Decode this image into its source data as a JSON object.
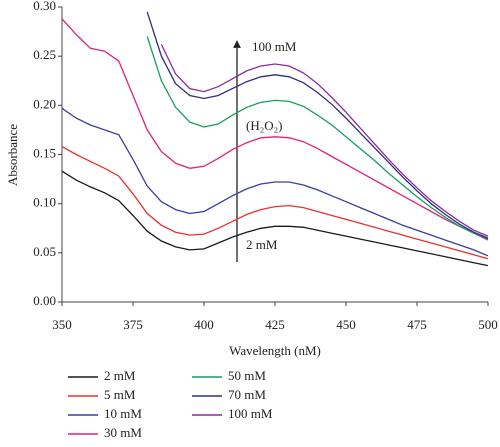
{
  "chart_data": {
    "type": "line",
    "xlabel": "Wavelength (nM)",
    "ylabel": "Absorbance",
    "annotations": [
      "100 mM",
      "(H₂O₂)",
      "2 mM"
    ],
    "x": [
      350,
      355,
      360,
      365,
      370,
      375,
      380,
      385,
      390,
      395,
      400,
      405,
      410,
      415,
      420,
      425,
      430,
      435,
      440,
      445,
      450,
      455,
      460,
      465,
      470,
      475,
      480,
      485,
      490,
      495,
      500
    ],
    "xlim": [
      350,
      500
    ],
    "xticks": [
      350,
      375,
      400,
      425,
      450,
      475,
      500
    ],
    "ylim": [
      0,
      0.3
    ],
    "yticks": [
      {
        "value": 0,
        "label": "0.00"
      },
      {
        "value": 0.05,
        "label": "0.05"
      },
      {
        "value": 0.1,
        "label": "0.10"
      },
      {
        "value": 0.15,
        "label": "0.15"
      },
      {
        "value": 0.2,
        "label": "0.20"
      },
      {
        "value": 0.25,
        "label": "0.25"
      },
      {
        "value": 0.3,
        "label": "0.30"
      }
    ],
    "series": [
      {
        "name": "2 mM",
        "color": "#1a1a1a",
        "values": [
          0.133,
          0.124,
          0.117,
          0.111,
          0.103,
          0.088,
          0.072,
          0.062,
          0.056,
          0.053,
          0.054,
          0.06,
          0.066,
          0.071,
          0.075,
          0.077,
          0.077,
          0.076,
          0.073,
          0.07,
          0.067,
          0.064,
          0.061,
          0.058,
          0.055,
          0.052,
          0.049,
          0.046,
          0.043,
          0.04,
          0.037
        ]
      },
      {
        "name": "5 mM",
        "color": "#e8312f",
        "values": [
          0.158,
          0.15,
          0.143,
          0.136,
          0.128,
          0.11,
          0.09,
          0.078,
          0.071,
          0.068,
          0.069,
          0.075,
          0.082,
          0.089,
          0.094,
          0.097,
          0.098,
          0.096,
          0.092,
          0.088,
          0.084,
          0.08,
          0.076,
          0.072,
          0.068,
          0.064,
          0.06,
          0.056,
          0.052,
          0.048,
          0.044
        ]
      },
      {
        "name": "10 mM",
        "color": "#3c3ca0",
        "values": [
          0.197,
          0.187,
          0.18,
          0.175,
          0.17,
          0.145,
          0.118,
          0.102,
          0.094,
          0.09,
          0.092,
          0.1,
          0.108,
          0.115,
          0.12,
          0.122,
          0.122,
          0.119,
          0.114,
          0.108,
          0.102,
          0.096,
          0.09,
          0.084,
          0.078,
          0.073,
          0.068,
          0.063,
          0.058,
          0.053,
          0.047
        ]
      },
      {
        "name": "30 mM",
        "color": "#e0207a",
        "values": [
          0.288,
          0.272,
          0.258,
          0.255,
          0.245,
          0.21,
          0.175,
          0.153,
          0.141,
          0.136,
          0.138,
          0.146,
          0.155,
          0.162,
          0.167,
          0.168,
          0.167,
          0.163,
          0.156,
          0.148,
          0.14,
          0.132,
          0.124,
          0.116,
          0.108,
          0.1,
          0.092,
          0.084,
          0.077,
          0.07,
          0.063
        ]
      },
      {
        "name": "50 mM",
        "color": "#12a05e",
        "values": [
          null,
          null,
          null,
          null,
          null,
          null,
          0.27,
          0.225,
          0.198,
          0.183,
          0.178,
          0.181,
          0.19,
          0.198,
          0.203,
          0.205,
          0.204,
          0.199,
          0.19,
          0.18,
          0.168,
          0.156,
          0.144,
          0.131,
          0.119,
          0.107,
          0.096,
          0.086,
          0.077,
          0.07,
          0.064
        ]
      },
      {
        "name": "70 mM",
        "color": "#2e2e80",
        "values": [
          null,
          null,
          null,
          null,
          null,
          null,
          0.295,
          0.25,
          0.222,
          0.21,
          0.207,
          0.21,
          0.217,
          0.224,
          0.229,
          0.231,
          0.229,
          0.223,
          0.213,
          0.201,
          0.187,
          0.172,
          0.157,
          0.142,
          0.127,
          0.113,
          0.1,
          0.089,
          0.079,
          0.071,
          0.065
        ]
      },
      {
        "name": "100 mM",
        "color": "#8c2a9c",
        "values": [
          null,
          null,
          null,
          null,
          null,
          null,
          null,
          0.262,
          0.232,
          0.217,
          0.214,
          0.219,
          0.227,
          0.235,
          0.24,
          0.242,
          0.24,
          0.233,
          0.222,
          0.208,
          0.193,
          0.177,
          0.161,
          0.145,
          0.13,
          0.116,
          0.103,
          0.092,
          0.082,
          0.073,
          0.067
        ]
      }
    ]
  }
}
